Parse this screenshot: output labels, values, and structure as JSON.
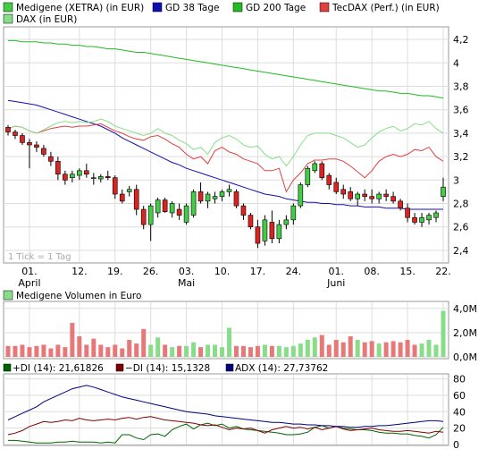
{
  "chart_data": [
    {
      "panel": "price",
      "type": "line",
      "legend": [
        {
          "name": "Medigene (XETRA) (in EUR)",
          "color": "#1e8a1e"
        },
        {
          "name": "GD 38 Tage",
          "color": "#1010b0"
        },
        {
          "name": "GD 200 Tage",
          "color": "#22bb22"
        },
        {
          "name": "TecDAX (Perf.) (in EUR)",
          "color": "#e04040"
        },
        {
          "name": "DAX (in EUR)",
          "color": "#88dd88"
        }
      ],
      "watermark": "1 Tick = 1 Tag",
      "ylim": [
        2.3,
        4.3
      ],
      "yticks": [
        "4,2",
        "4",
        "3,8",
        "3,6",
        "3,4",
        "3,2",
        "3",
        "2,8",
        "2,6",
        "2,4"
      ],
      "ytick_values": [
        4.2,
        4.0,
        3.8,
        3.6,
        3.4,
        3.2,
        3.0,
        2.8,
        2.6,
        2.4
      ],
      "xticks": [
        "01.",
        "12.",
        "19.",
        "26.",
        "03.",
        "10.",
        "17.",
        "24.",
        "01.",
        "08.",
        "15.",
        "22."
      ],
      "xtick_index": [
        3,
        10,
        15,
        20,
        25,
        30,
        35,
        40,
        46,
        51,
        56,
        61
      ],
      "month_labels": [
        {
          "label": "April",
          "index": 3
        },
        {
          "label": "Mai",
          "index": 25
        },
        {
          "label": "Juni",
          "index": 46
        }
      ],
      "candles": [
        [
          3.45,
          3.47,
          3.38,
          3.41
        ],
        [
          3.41,
          3.43,
          3.35,
          3.38
        ],
        [
          3.38,
          3.4,
          3.3,
          3.32
        ],
        [
          3.32,
          3.35,
          3.1,
          3.3
        ],
        [
          3.3,
          3.33,
          3.24,
          3.28
        ],
        [
          3.27,
          3.3,
          3.2,
          3.22
        ],
        [
          3.2,
          3.24,
          3.12,
          3.16
        ],
        [
          3.16,
          3.2,
          3.0,
          3.05
        ],
        [
          3.05,
          3.08,
          2.96,
          3.0
        ],
        [
          3.02,
          3.08,
          2.98,
          3.05
        ],
        [
          3.04,
          3.1,
          3.0,
          3.08
        ],
        [
          3.08,
          3.14,
          3.02,
          3.05
        ],
        [
          3.02,
          3.06,
          2.96,
          3.02
        ],
        [
          3.01,
          3.05,
          2.98,
          3.03
        ],
        [
          3.03,
          3.08,
          3.0,
          3.02
        ],
        [
          3.02,
          3.04,
          2.84,
          2.88
        ],
        [
          2.88,
          2.92,
          2.8,
          2.82
        ],
        [
          2.9,
          2.95,
          2.86,
          2.92
        ],
        [
          2.92,
          2.96,
          2.7,
          2.75
        ],
        [
          2.75,
          2.78,
          2.58,
          2.62
        ],
        [
          2.62,
          2.8,
          2.48,
          2.78
        ],
        [
          2.72,
          2.85,
          2.68,
          2.83
        ],
        [
          2.83,
          2.85,
          2.72,
          2.73
        ],
        [
          2.72,
          2.82,
          2.68,
          2.8
        ],
        [
          2.75,
          2.8,
          2.66,
          2.7
        ],
        [
          2.64,
          2.8,
          2.62,
          2.78
        ],
        [
          2.7,
          2.92,
          2.68,
          2.9
        ],
        [
          2.9,
          2.98,
          2.8,
          2.82
        ],
        [
          2.82,
          2.9,
          2.76,
          2.88
        ],
        [
          2.84,
          2.9,
          2.8,
          2.86
        ],
        [
          2.86,
          2.92,
          2.82,
          2.9
        ],
        [
          2.9,
          2.96,
          2.86,
          2.92
        ],
        [
          2.9,
          2.92,
          2.76,
          2.78
        ],
        [
          2.78,
          2.8,
          2.66,
          2.7
        ],
        [
          2.7,
          2.72,
          2.58,
          2.6
        ],
        [
          2.6,
          2.66,
          2.42,
          2.46
        ],
        [
          2.48,
          2.7,
          2.44,
          2.66
        ],
        [
          2.64,
          2.74,
          2.46,
          2.5
        ],
        [
          2.5,
          2.66,
          2.46,
          2.62
        ],
        [
          2.62,
          2.7,
          2.58,
          2.66
        ],
        [
          2.66,
          2.8,
          2.62,
          2.78
        ],
        [
          2.78,
          2.98,
          2.76,
          2.96
        ],
        [
          2.96,
          3.12,
          2.94,
          3.1
        ],
        [
          3.08,
          3.16,
          3.06,
          3.14
        ],
        [
          3.14,
          3.16,
          3.0,
          3.02
        ],
        [
          3.04,
          3.06,
          2.92,
          2.96
        ],
        [
          2.98,
          3.02,
          2.88,
          2.9
        ],
        [
          2.92,
          2.96,
          2.84,
          2.88
        ],
        [
          2.9,
          2.94,
          2.82,
          2.84
        ],
        [
          2.84,
          2.9,
          2.78,
          2.88
        ],
        [
          2.88,
          2.92,
          2.82,
          2.86
        ],
        [
          2.86,
          2.92,
          2.8,
          2.84
        ],
        [
          2.84,
          2.9,
          2.8,
          2.88
        ],
        [
          2.88,
          2.92,
          2.82,
          2.86
        ],
        [
          2.86,
          2.9,
          2.8,
          2.82
        ],
        [
          2.82,
          2.84,
          2.74,
          2.76
        ],
        [
          2.76,
          2.8,
          2.64,
          2.68
        ],
        [
          2.68,
          2.72,
          2.62,
          2.64
        ],
        [
          2.64,
          2.72,
          2.6,
          2.68
        ],
        [
          2.66,
          2.72,
          2.62,
          2.7
        ],
        [
          2.68,
          2.74,
          2.64,
          2.72
        ],
        [
          2.86,
          3.02,
          2.82,
          2.94
        ]
      ],
      "series": [
        {
          "name": "GD 200 Tage",
          "values": [
            4.19,
            4.19,
            4.18,
            4.18,
            4.18,
            4.17,
            4.17,
            4.16,
            4.16,
            4.15,
            4.15,
            4.14,
            4.14,
            4.13,
            4.12,
            4.12,
            4.11,
            4.1,
            4.09,
            4.09,
            4.08,
            4.07,
            4.06,
            4.05,
            4.04,
            4.03,
            4.02,
            4.01,
            4.0,
            3.99,
            3.98,
            3.97,
            3.96,
            3.95,
            3.94,
            3.93,
            3.92,
            3.91,
            3.9,
            3.89,
            3.88,
            3.87,
            3.86,
            3.85,
            3.84,
            3.83,
            3.82,
            3.81,
            3.8,
            3.79,
            3.78,
            3.77,
            3.76,
            3.76,
            3.75,
            3.74,
            3.74,
            3.73,
            3.72,
            3.72,
            3.71,
            3.7
          ]
        },
        {
          "name": "GD 38 Tage",
          "values": [
            3.68,
            3.67,
            3.66,
            3.65,
            3.64,
            3.62,
            3.6,
            3.58,
            3.56,
            3.54,
            3.52,
            3.5,
            3.48,
            3.46,
            3.43,
            3.4,
            3.36,
            3.33,
            3.3,
            3.27,
            3.24,
            3.21,
            3.18,
            3.15,
            3.13,
            3.1,
            3.08,
            3.06,
            3.04,
            3.02,
            3.0,
            2.98,
            2.96,
            2.94,
            2.92,
            2.9,
            2.88,
            2.87,
            2.86,
            2.84,
            2.83,
            2.82,
            2.81,
            2.81,
            2.8,
            2.8,
            2.79,
            2.79,
            2.78,
            2.78,
            2.77,
            2.77,
            2.77,
            2.76,
            2.76,
            2.76,
            2.75,
            2.75,
            2.75,
            2.75,
            2.75,
            2.75
          ]
        },
        {
          "name": "TecDAX (Perf.) (in EUR)",
          "values": [
            3.44,
            3.46,
            3.45,
            3.42,
            3.4,
            3.42,
            3.44,
            3.45,
            3.46,
            3.45,
            3.46,
            3.46,
            3.47,
            3.48,
            3.45,
            3.42,
            3.4,
            3.37,
            3.35,
            3.34,
            3.37,
            3.38,
            3.35,
            3.31,
            3.28,
            3.22,
            3.18,
            3.2,
            3.14,
            3.25,
            3.28,
            3.24,
            3.22,
            3.18,
            3.16,
            3.14,
            3.08,
            3.08,
            3.1,
            2.9,
            3.0,
            3.06,
            3.14,
            3.17,
            3.17,
            3.18,
            3.18,
            3.16,
            3.12,
            3.07,
            3.02,
            3.08,
            3.16,
            3.2,
            3.22,
            3.2,
            3.22,
            3.26,
            3.25,
            3.28,
            3.2,
            3.16
          ]
        },
        {
          "name": "DAX (in EUR)",
          "values": [
            3.44,
            3.46,
            3.45,
            3.42,
            3.4,
            3.43,
            3.46,
            3.49,
            3.5,
            3.49,
            3.5,
            3.49,
            3.5,
            3.52,
            3.5,
            3.46,
            3.44,
            3.42,
            3.4,
            3.38,
            3.4,
            3.44,
            3.4,
            3.38,
            3.34,
            3.31,
            3.26,
            3.28,
            3.22,
            3.32,
            3.36,
            3.38,
            3.35,
            3.3,
            3.28,
            3.29,
            3.22,
            3.18,
            3.2,
            3.12,
            3.2,
            3.3,
            3.38,
            3.4,
            3.4,
            3.4,
            3.38,
            3.36,
            3.32,
            3.28,
            3.3,
            3.36,
            3.41,
            3.44,
            3.46,
            3.42,
            3.44,
            3.48,
            3.47,
            3.5,
            3.44,
            3.4
          ]
        }
      ]
    },
    {
      "panel": "volume",
      "type": "bar",
      "legend": [
        {
          "name": "Medigene Volumen in Euro",
          "color": "#88dd88"
        }
      ],
      "ylim": [
        0,
        4500000
      ],
      "yticks": [
        "4,0M",
        "2,0M",
        "0,0M"
      ],
      "ytick_values": [
        4000000,
        2000000,
        0
      ],
      "values": [
        900000,
        900000,
        1000000,
        800000,
        900000,
        1000000,
        700000,
        1000000,
        800000,
        2800000,
        1700000,
        1000000,
        1500000,
        1000000,
        800000,
        1000000,
        700000,
        1400000,
        1100000,
        2300000,
        1000000,
        1600000,
        1000000,
        800000,
        900000,
        900000,
        1200000,
        800000,
        1000000,
        1000000,
        800000,
        2400000,
        900000,
        900000,
        800000,
        900000,
        1000000,
        900000,
        900000,
        800000,
        900000,
        1100000,
        1400000,
        1600000,
        1800000,
        1000000,
        1400000,
        1200000,
        1700000,
        1400000,
        1200000,
        1300000,
        1100000,
        1200000,
        1300000,
        1200000,
        1400000,
        1000000,
        1100000,
        1400000,
        1000000,
        3800000
      ],
      "up": [
        false,
        false,
        false,
        false,
        false,
        false,
        false,
        false,
        false,
        false,
        false,
        false,
        false,
        false,
        false,
        false,
        false,
        false,
        false,
        false,
        true,
        true,
        false,
        true,
        false,
        true,
        true,
        false,
        true,
        true,
        true,
        true,
        false,
        false,
        false,
        false,
        true,
        false,
        true,
        true,
        true,
        true,
        true,
        true,
        false,
        false,
        false,
        false,
        false,
        true,
        false,
        false,
        true,
        false,
        false,
        false,
        false,
        false,
        true,
        true,
        true,
        true
      ]
    },
    {
      "panel": "indicator",
      "type": "line",
      "legend": [
        {
          "name": "+DI (14): 21,61826",
          "color": "#006400"
        },
        {
          "name": "−DI (14): 15,1328",
          "color": "#800000"
        },
        {
          "name": "ADX (14): 27,73762",
          "color": "#000080"
        }
      ],
      "ylim": [
        0,
        85
      ],
      "yticks": [
        "80",
        "60",
        "40",
        "20",
        "0"
      ],
      "ytick_values": [
        80,
        60,
        40,
        20,
        0
      ],
      "series": [
        {
          "name": "+DI (14)",
          "values": [
            5,
            5,
            4,
            3,
            2,
            2,
            2,
            3,
            3,
            4,
            3,
            3,
            3,
            2,
            3,
            2,
            12,
            12,
            8,
            6,
            12,
            13,
            10,
            18,
            22,
            25,
            19,
            24,
            26,
            23,
            25,
            20,
            22,
            19,
            18,
            17,
            16,
            15,
            14,
            12,
            12,
            13,
            15,
            21,
            23,
            20,
            22,
            20,
            19,
            18,
            18,
            17,
            15,
            14,
            14,
            13,
            13,
            11,
            10,
            8,
            12,
            21
          ]
        },
        {
          "name": "−DI (14)",
          "values": [
            12,
            14,
            17,
            22,
            25,
            28,
            27,
            28,
            30,
            29,
            32,
            30,
            29,
            30,
            31,
            30,
            32,
            33,
            31,
            33,
            34,
            32,
            30,
            29,
            28,
            27,
            26,
            24,
            23,
            24,
            21,
            18,
            20,
            19,
            20,
            17,
            14,
            18,
            20,
            22,
            20,
            21,
            19,
            21,
            18,
            20,
            22,
            19,
            17,
            18,
            19,
            20,
            18,
            17,
            16,
            16,
            17,
            16,
            15,
            14,
            16,
            15
          ]
        },
        {
          "name": "ADX (14)",
          "values": [
            30,
            34,
            38,
            42,
            46,
            52,
            56,
            60,
            64,
            68,
            70,
            72,
            70,
            67,
            64,
            61,
            58,
            56,
            54,
            52,
            50,
            48,
            46,
            44,
            42,
            40,
            39,
            38,
            37,
            35,
            34,
            33,
            32,
            31,
            30,
            29,
            28,
            27,
            27,
            26,
            25,
            25,
            24,
            24,
            23,
            23,
            22,
            22,
            21,
            21,
            22,
            22,
            23,
            23,
            24,
            25,
            26,
            27,
            28,
            29,
            29,
            28
          ]
        }
      ]
    }
  ]
}
